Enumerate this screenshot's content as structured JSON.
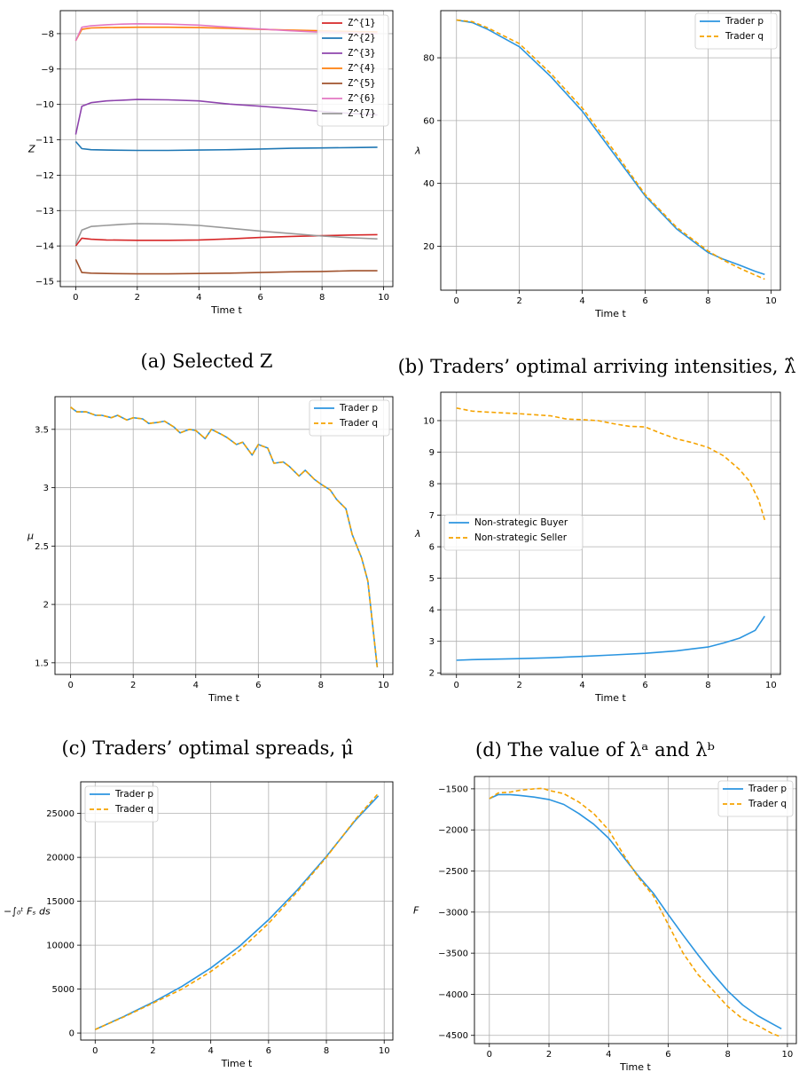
{
  "captions": {
    "a": "(a) Selected Z",
    "b": "(b) Traders’ optimal arriving intensities, λ̂",
    "c": "(c) Traders’ optimal spreads, μ̂",
    "d": "(d) The value of λᵃ and λᵇ"
  },
  "colors": {
    "red": "#d62728",
    "blue": "#1f77b4",
    "purple": "#8e44ad",
    "orange": "#ff7f0e",
    "brown": "#a0522d",
    "pink": "#e377c2",
    "gray": "#999999",
    "p": "#2b95e0",
    "q": "#f5a300"
  },
  "chart_data": [
    {
      "type": "line",
      "title": "",
      "xlabel": "Time t",
      "ylabel": "Z",
      "xlim": [
        -0.5,
        10.3
      ],
      "ylim": [
        -15.15,
        -7.35
      ],
      "xticks": [
        0,
        2,
        4,
        6,
        8,
        10
      ],
      "yticks": [
        -15,
        -14,
        -13,
        -12,
        -11,
        -10,
        -9,
        -8
      ],
      "grid": true,
      "legend_position": "top-right",
      "series": [
        {
          "name": "Z^{1}",
          "color": "#d62728",
          "x": [
            0,
            0.2,
            0.5,
            1,
            2,
            3,
            4,
            5,
            6,
            7,
            8,
            9,
            9.8
          ],
          "y": [
            -14.0,
            -13.78,
            -13.81,
            -13.83,
            -13.84,
            -13.84,
            -13.83,
            -13.8,
            -13.76,
            -13.73,
            -13.71,
            -13.69,
            -13.68
          ]
        },
        {
          "name": "Z^{2}",
          "color": "#1f77b4",
          "x": [
            0,
            0.2,
            0.5,
            1,
            2,
            3,
            4,
            5,
            6,
            7,
            8,
            9,
            9.8
          ],
          "y": [
            -11.05,
            -11.25,
            -11.28,
            -11.29,
            -11.3,
            -11.3,
            -11.29,
            -11.28,
            -11.26,
            -11.24,
            -11.23,
            -11.22,
            -11.21
          ]
        },
        {
          "name": "Z^{3}",
          "color": "#8e44ad",
          "x": [
            0,
            0.2,
            0.5,
            1,
            1.5,
            2,
            3,
            4,
            5,
            6,
            7,
            8,
            9,
            9.8
          ],
          "y": [
            -10.85,
            -10.05,
            -9.95,
            -9.9,
            -9.88,
            -9.86,
            -9.87,
            -9.9,
            -9.99,
            -10.05,
            -10.12,
            -10.2,
            -10.26,
            -10.3
          ]
        },
        {
          "name": "Z^{4}",
          "color": "#ff7f0e",
          "x": [
            0,
            0.2,
            0.5,
            1,
            2,
            3,
            4,
            5,
            6,
            7,
            8,
            9,
            9.8
          ],
          "y": [
            -8.2,
            -7.88,
            -7.84,
            -7.83,
            -7.82,
            -7.82,
            -7.83,
            -7.85,
            -7.88,
            -7.9,
            -7.92,
            -7.94,
            -7.95
          ]
        },
        {
          "name": "Z^{5}",
          "color": "#a0522d",
          "x": [
            0,
            0.2,
            0.5,
            1,
            2,
            3,
            4,
            5,
            6,
            7,
            8,
            9,
            9.8
          ],
          "y": [
            -14.38,
            -14.75,
            -14.77,
            -14.78,
            -14.79,
            -14.79,
            -14.78,
            -14.77,
            -14.75,
            -14.73,
            -14.72,
            -14.7,
            -14.7
          ]
        },
        {
          "name": "Z^{6}",
          "color": "#e377c2",
          "x": [
            0,
            0.2,
            0.5,
            1,
            1.5,
            2,
            3,
            4,
            5,
            6,
            7,
            8,
            9,
            9.8
          ],
          "y": [
            -8.2,
            -7.82,
            -7.78,
            -7.75,
            -7.73,
            -7.72,
            -7.73,
            -7.76,
            -7.82,
            -7.87,
            -7.92,
            -7.96,
            -7.98,
            -8.0
          ]
        },
        {
          "name": "Z^{7}",
          "color": "#999999",
          "x": [
            0,
            0.2,
            0.5,
            1,
            1.5,
            2,
            3,
            4,
            5,
            6,
            7,
            8,
            9,
            9.8
          ],
          "y": [
            -13.95,
            -13.55,
            -13.45,
            -13.42,
            -13.39,
            -13.37,
            -13.38,
            -13.42,
            -13.5,
            -13.58,
            -13.65,
            -13.72,
            -13.77,
            -13.8
          ]
        }
      ]
    },
    {
      "type": "line",
      "title": "",
      "xlabel": "Time t",
      "ylabel": "λ",
      "xlim": [
        -0.5,
        10.3
      ],
      "ylim": [
        6,
        95
      ],
      "xticks": [
        0,
        2,
        4,
        6,
        8,
        10
      ],
      "yticks": [
        20,
        40,
        60,
        80
      ],
      "grid": true,
      "legend_position": "top-right",
      "series": [
        {
          "name": "Trader p",
          "color": "#2b95e0",
          "x": [
            0,
            0.5,
            1,
            2,
            3,
            4,
            5,
            6,
            7,
            8,
            8.5,
            9,
            9.5,
            9.8
          ],
          "y": [
            92,
            91.2,
            89,
            83.5,
            74,
            63,
            49.5,
            36,
            25.5,
            18,
            15.8,
            14,
            12,
            11
          ]
        },
        {
          "name": "Trader q",
          "color": "#f5a300",
          "x": [
            0,
            0.5,
            1,
            2,
            3,
            4,
            5,
            6,
            7,
            8,
            8.5,
            9,
            9.5,
            9.8
          ],
          "y": [
            92,
            91.5,
            89.5,
            84.5,
            75,
            64,
            50.5,
            36.5,
            26,
            18.5,
            15.5,
            13,
            10.8,
            9.5
          ]
        }
      ]
    },
    {
      "type": "line",
      "title": "",
      "xlabel": "Time t",
      "ylabel": "μ",
      "xlim": [
        -0.5,
        10.3
      ],
      "ylim": [
        1.4,
        3.78
      ],
      "xticks": [
        0,
        2,
        4,
        6,
        8,
        10
      ],
      "yticks": [
        1.5,
        2.0,
        2.5,
        3.0,
        3.5
      ],
      "grid": true,
      "legend_position": "top-right",
      "series": [
        {
          "name": "Trader p",
          "color": "#2b95e0",
          "x": [
            0,
            0.2,
            0.5,
            0.8,
            1,
            1.3,
            1.5,
            1.8,
            2,
            2.3,
            2.5,
            2.8,
            3,
            3.3,
            3.5,
            3.8,
            4,
            4.3,
            4.5,
            4.8,
            5,
            5.3,
            5.5,
            5.8,
            6,
            6.3,
            6.5,
            6.8,
            7,
            7.3,
            7.5,
            7.8,
            8,
            8.3,
            8.5,
            8.8,
            9,
            9.3,
            9.5,
            9.8
          ],
          "y": [
            3.69,
            3.65,
            3.65,
            3.62,
            3.62,
            3.6,
            3.62,
            3.58,
            3.6,
            3.59,
            3.55,
            3.56,
            3.57,
            3.52,
            3.47,
            3.5,
            3.49,
            3.42,
            3.5,
            3.46,
            3.43,
            3.37,
            3.39,
            3.28,
            3.37,
            3.34,
            3.21,
            3.22,
            3.18,
            3.1,
            3.15,
            3.07,
            3.03,
            2.98,
            2.9,
            2.82,
            2.6,
            2.4,
            2.2,
            1.46
          ]
        },
        {
          "name": "Trader q",
          "color": "#f5a300",
          "x": [
            0,
            0.2,
            0.5,
            0.8,
            1,
            1.3,
            1.5,
            1.8,
            2,
            2.3,
            2.5,
            2.8,
            3,
            3.3,
            3.5,
            3.8,
            4,
            4.3,
            4.5,
            4.8,
            5,
            5.3,
            5.5,
            5.8,
            6,
            6.3,
            6.5,
            6.8,
            7,
            7.3,
            7.5,
            7.8,
            8,
            8.3,
            8.5,
            8.8,
            9,
            9.3,
            9.5,
            9.8
          ],
          "y": [
            3.69,
            3.65,
            3.65,
            3.62,
            3.62,
            3.6,
            3.62,
            3.58,
            3.6,
            3.59,
            3.55,
            3.56,
            3.57,
            3.52,
            3.47,
            3.5,
            3.49,
            3.42,
            3.5,
            3.46,
            3.43,
            3.37,
            3.39,
            3.28,
            3.37,
            3.34,
            3.21,
            3.22,
            3.18,
            3.1,
            3.15,
            3.07,
            3.03,
            2.98,
            2.9,
            2.82,
            2.6,
            2.4,
            2.2,
            1.46
          ]
        }
      ]
    },
    {
      "type": "line",
      "title": "",
      "xlabel": "Time t",
      "ylabel": "λ",
      "xlim": [
        -0.5,
        10.3
      ],
      "ylim": [
        1.95,
        10.9
      ],
      "xticks": [
        0,
        2,
        4,
        6,
        8,
        10
      ],
      "yticks": [
        2,
        3,
        4,
        5,
        6,
        7,
        8,
        9,
        10
      ],
      "grid": true,
      "legend_position": "center-left",
      "series": [
        {
          "name": "Non-strategic Buyer",
          "color": "#2b95e0",
          "x": [
            0,
            0.5,
            1,
            2,
            3,
            4,
            5,
            6,
            7,
            7.5,
            8,
            8.5,
            9,
            9.5,
            9.8
          ],
          "y": [
            2.4,
            2.42,
            2.43,
            2.45,
            2.48,
            2.52,
            2.57,
            2.62,
            2.7,
            2.76,
            2.82,
            2.95,
            3.1,
            3.35,
            3.8
          ]
        },
        {
          "name": "Non-strategic Seller",
          "color": "#f5a300",
          "x": [
            0,
            0.5,
            1,
            2,
            3,
            3.5,
            4,
            4.5,
            5,
            5.5,
            6,
            6.5,
            7,
            7.5,
            8,
            8.5,
            9,
            9.3,
            9.6,
            9.8
          ],
          "y": [
            10.4,
            10.3,
            10.27,
            10.22,
            10.15,
            10.05,
            10.03,
            10.0,
            9.9,
            9.82,
            9.8,
            9.6,
            9.42,
            9.3,
            9.15,
            8.88,
            8.45,
            8.1,
            7.5,
            6.85
          ]
        }
      ]
    },
    {
      "type": "line",
      "title": "",
      "xlabel": "Time t",
      "ylabel": "−∫₀ᵗ Fₛ ds",
      "xlim": [
        -0.5,
        10.3
      ],
      "ylim": [
        -800,
        28600
      ],
      "xticks": [
        0,
        2,
        4,
        6,
        8,
        10
      ],
      "yticks": [
        0,
        5000,
        10000,
        15000,
        20000,
        25000
      ],
      "grid": true,
      "legend_position": "top-left",
      "series": [
        {
          "name": "Trader p",
          "color": "#2b95e0",
          "x": [
            0,
            1,
            2,
            3,
            4,
            5,
            6,
            7,
            8,
            9,
            9.8
          ],
          "y": [
            400,
            1900,
            3500,
            5300,
            7400,
            9900,
            12900,
            16300,
            20100,
            24200,
            27000
          ]
        },
        {
          "name": "Trader q",
          "color": "#f5a300",
          "x": [
            0,
            1,
            2,
            3,
            4,
            5,
            6,
            7,
            8,
            9,
            9.8
          ],
          "y": [
            400,
            1850,
            3400,
            5000,
            7000,
            9400,
            12500,
            16100,
            20000,
            24300,
            27300
          ]
        }
      ]
    },
    {
      "type": "line",
      "title": "",
      "xlabel": "Time t",
      "ylabel": "F",
      "xlim": [
        -0.5,
        10.3
      ],
      "ylim": [
        -4600,
        -1350
      ],
      "xticks": [
        0,
        2,
        4,
        6,
        8,
        10
      ],
      "yticks": [
        -4500,
        -4000,
        -3500,
        -3000,
        -2500,
        -2000,
        -1500
      ],
      "grid": true,
      "legend_position": "top-right",
      "series": [
        {
          "name": "Trader p",
          "color": "#2b95e0",
          "x": [
            0,
            0.3,
            0.7,
            1,
            1.5,
            2,
            2.5,
            3,
            3.5,
            4,
            4.5,
            5,
            5.5,
            6,
            6.5,
            7,
            7.5,
            8,
            8.5,
            9,
            9.5,
            9.8
          ],
          "y": [
            -1620,
            -1570,
            -1570,
            -1580,
            -1600,
            -1630,
            -1690,
            -1800,
            -1930,
            -2100,
            -2330,
            -2560,
            -2770,
            -3030,
            -3280,
            -3520,
            -3750,
            -3960,
            -4130,
            -4260,
            -4360,
            -4420
          ]
        },
        {
          "name": "Trader q",
          "color": "#f5a300",
          "x": [
            0,
            0.3,
            0.7,
            1,
            1.5,
            1.8,
            2,
            2.5,
            3,
            3.5,
            4,
            4.5,
            5,
            5.5,
            6,
            6.5,
            7,
            7.5,
            8,
            8.5,
            9,
            9.5,
            9.8
          ],
          "y": [
            -1620,
            -1550,
            -1540,
            -1520,
            -1500,
            -1495,
            -1520,
            -1560,
            -1660,
            -1800,
            -2000,
            -2300,
            -2580,
            -2800,
            -3150,
            -3500,
            -3760,
            -3950,
            -4150,
            -4300,
            -4380,
            -4480,
            -4520
          ]
        }
      ]
    }
  ]
}
